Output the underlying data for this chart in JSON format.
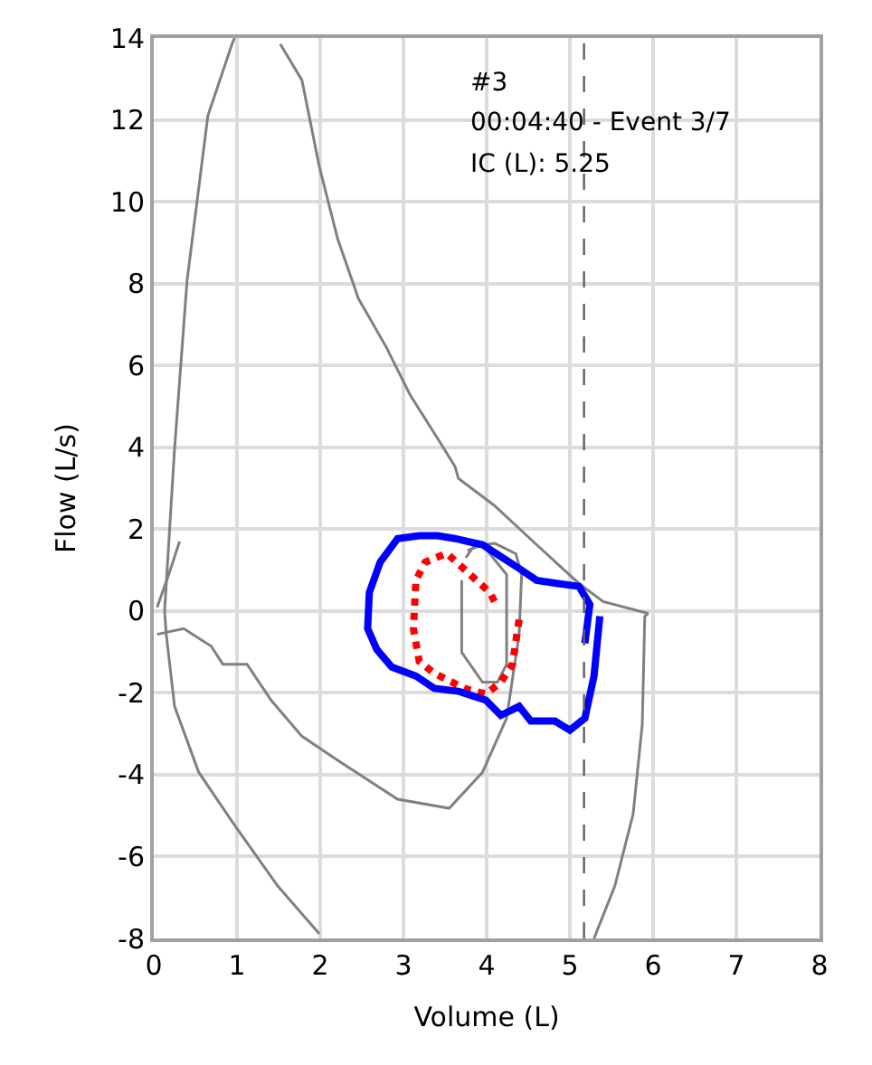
{
  "chart_data": {
    "type": "line",
    "xlabel": "Volume (L)",
    "ylabel": "Flow (L/s)",
    "xlim": [
      0,
      8
    ],
    "ylim": [
      -8,
      14
    ],
    "xticks": [
      0,
      1,
      2,
      3,
      4,
      5,
      6,
      7,
      8
    ],
    "yticks": [
      -8,
      -6,
      -4,
      -2,
      0,
      2,
      4,
      6,
      8,
      10,
      12,
      14
    ],
    "grid": true,
    "series": [
      {
        "color": "#808080",
        "x": [
          1.99,
          1.49,
          0.98,
          0.54,
          0.25,
          0.15,
          0.13,
          0.25,
          0.4,
          0.65,
          0.94,
          0.97,
          1.5,
          1.52,
          1.78,
          1.99,
          2.21,
          2.46,
          2.79,
          3.08,
          3.44,
          3.62,
          3.66,
          4.09,
          4.6,
          5.11,
          5.4,
          5.94,
          5.9,
          5.87,
          5.76,
          5.54,
          5.29
        ],
        "values": [
          -7.89,
          -6.72,
          -5.26,
          -3.94,
          -2.33,
          -0.57,
          0.0,
          3.97,
          8.07,
          12.1,
          13.85,
          14,
          null,
          13.85,
          12.97,
          10.85,
          9.09,
          7.63,
          6.46,
          5.28,
          4.12,
          3.53,
          3.24,
          2.58,
          1.62,
          0.67,
          0.23,
          -0.06,
          -0.13,
          -2.77,
          -4.96,
          -6.72,
          -8.0
        ]
      },
      {
        "color": "#808080",
        "x": [
          0.04,
          0.18,
          0.31
        ],
        "values": [
          0.09,
          0.89,
          1.7
        ]
      },
      {
        "color": "#808080",
        "x": [
          0.04,
          0.36,
          0.69,
          0.83,
          1.12,
          1.41,
          1.78,
          2.21,
          2.93,
          3.55,
          3.95,
          4.24,
          4.39,
          4.42,
          4.35,
          4.1,
          3.85,
          3.75
        ],
        "values": [
          -0.57,
          -0.43,
          -0.86,
          -1.3,
          -1.3,
          -2.18,
          -3.06,
          -3.65,
          -4.6,
          -4.82,
          -3.94,
          -2.62,
          -0.57,
          0.89,
          1.4,
          1.65,
          1.6,
          1.3
        ]
      },
      {
        "color": "#808080",
        "x": [
          3.77,
          3.95,
          4.24,
          4.24,
          4.13,
          3.95,
          3.7,
          3.7
        ],
        "values": [
          1.48,
          1.62,
          0.89,
          -1.3,
          -1.74,
          -1.74,
          -1.01,
          0.75
        ]
      },
      {
        "color": "#ff0000",
        "line_style": "dotted",
        "x": [
          4.39,
          4.31,
          4.17,
          3.99,
          3.73,
          3.37,
          3.19,
          3.12,
          3.15,
          3.26,
          3.52,
          3.8,
          4.04,
          4.13
        ],
        "values": [
          -0.21,
          -1.3,
          -1.74,
          -2.03,
          -1.89,
          -1.52,
          -1.23,
          -0.43,
          0.75,
          1.19,
          1.41,
          0.89,
          0.45,
          0.09
        ]
      },
      {
        "color": "#0000ff",
        "x": [
          5.36,
          5.29,
          5.18,
          5.0,
          4.82,
          4.53,
          4.39,
          4.17,
          3.99,
          3.66,
          3.37,
          3.15,
          2.86,
          2.68,
          2.57,
          2.59,
          2.72,
          2.93,
          3.19,
          3.41,
          3.62,
          3.95,
          4.17,
          4.39,
          4.6,
          4.86,
          5.11,
          5.24,
          5.18
        ],
        "values": [
          -0.13,
          -1.59,
          -2.62,
          -2.91,
          -2.69,
          -2.69,
          -2.33,
          -2.55,
          -2.18,
          -1.96,
          -1.89,
          -1.59,
          -1.37,
          -0.94,
          -0.43,
          0.45,
          1.19,
          1.77,
          1.84,
          1.84,
          1.77,
          1.62,
          1.33,
          1.04,
          0.75,
          0.67,
          0.6,
          0.16,
          -0.79
        ]
      }
    ],
    "ref_lines": [
      {
        "axis": "x",
        "value": 5.17,
        "color": "#606060",
        "line_style": "dashed"
      }
    ],
    "annotations": [
      "#3",
      "00:04:40 - Event 3/7",
      "IC (L): 5.25"
    ]
  }
}
